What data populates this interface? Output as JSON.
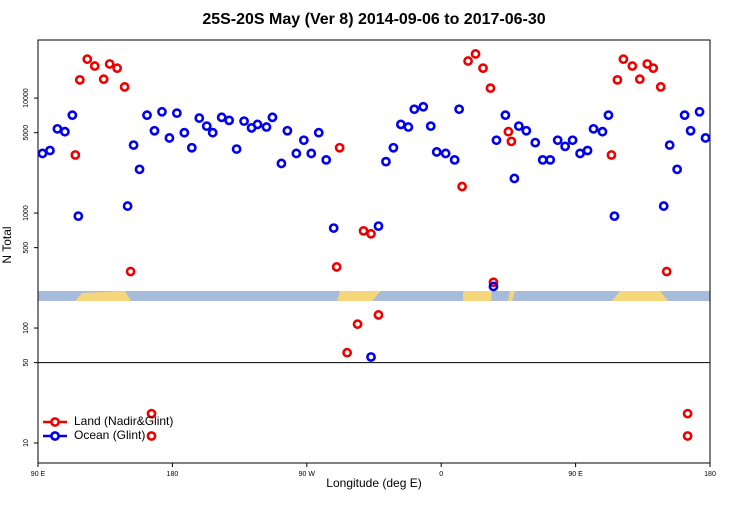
{
  "chart_data": {
    "type": "scatter",
    "title": "25S-20S May (Ver 8)   2014-09-06 to 2017-06-30",
    "x_label": "Longitude (deg E)",
    "y_label": "N Total",
    "xlim": [
      90,
      540
    ],
    "xticks": [
      {
        "value": 90,
        "label": "90 E"
      },
      180,
      {
        "value": 270,
        "label": "90 W"
      },
      {
        "value": 360,
        "label": "0"
      },
      {
        "value": 450,
        "label": "90 E"
      },
      {
        "value": 540,
        "label": "180"
      }
    ],
    "ylim": [
      6.7,
      32000
    ],
    "y_log": true,
    "yticks": [
      10,
      50,
      100,
      500,
      1000,
      5000,
      10000
    ],
    "hline": 50,
    "legend": "bottom-left",
    "series": [
      {
        "name": "Land (Nadir&Glint)",
        "color": "#ee0000",
        "x": [
          115,
          118,
          123,
          128,
          134,
          138,
          143,
          148,
          152,
          166,
          166,
          290,
          292,
          297,
          304,
          308,
          313,
          318,
          374,
          378,
          383,
          388,
          393,
          395,
          405,
          407,
          474,
          478,
          482,
          488,
          493,
          498,
          502,
          507,
          511,
          525,
          525
        ],
        "values": [
          3200,
          14400,
          21800,
          19000,
          14600,
          19800,
          18200,
          12500,
          310,
          18,
          11.5,
          340,
          3700,
          61,
          108,
          700,
          660,
          130,
          1700,
          21000,
          24200,
          18200,
          12200,
          250,
          5100,
          4200,
          3200,
          14400,
          21800,
          19000,
          14600,
          19800,
          18200,
          12500,
          310,
          18,
          11.5
        ]
      },
      {
        "name": "Ocean (Glint)",
        "color": "#0000ee",
        "x": [
          93,
          98,
          103,
          108,
          113,
          117,
          150,
          154,
          158,
          163,
          168,
          173,
          178,
          183,
          188,
          193,
          198,
          203,
          207,
          213,
          218,
          223,
          228,
          233,
          237,
          243,
          247,
          253,
          257,
          263,
          268,
          273,
          278,
          283,
          288,
          313,
          318,
          323,
          328,
          333,
          338,
          342,
          348,
          353,
          357,
          363,
          369,
          372,
          395,
          397,
          403,
          409,
          412,
          417,
          423,
          428,
          433,
          438,
          443,
          448,
          453,
          458,
          462,
          468,
          472,
          476,
          509,
          513,
          518,
          523,
          527,
          533,
          537
        ],
        "values": [
          3300,
          3500,
          5400,
          5100,
          7100,
          940,
          1150,
          3900,
          2400,
          7100,
          5200,
          7600,
          4500,
          7400,
          5000,
          3700,
          6700,
          5700,
          5000,
          6800,
          6400,
          3600,
          6300,
          5500,
          5900,
          5600,
          6800,
          2700,
          5200,
          3300,
          4300,
          3300,
          5000,
          2900,
          740,
          56,
          770,
          2800,
          3700,
          5900,
          5600,
          8000,
          8400,
          5700,
          3400,
          3300,
          2900,
          8000,
          230,
          4300,
          7100,
          2000,
          5700,
          5200,
          4100,
          2900,
          2900,
          4300,
          3800,
          4300,
          3300,
          3500,
          5400,
          5100,
          7100,
          940,
          1150,
          3900,
          2400,
          7100,
          5200,
          7600,
          4500
        ]
      }
    ]
  }
}
